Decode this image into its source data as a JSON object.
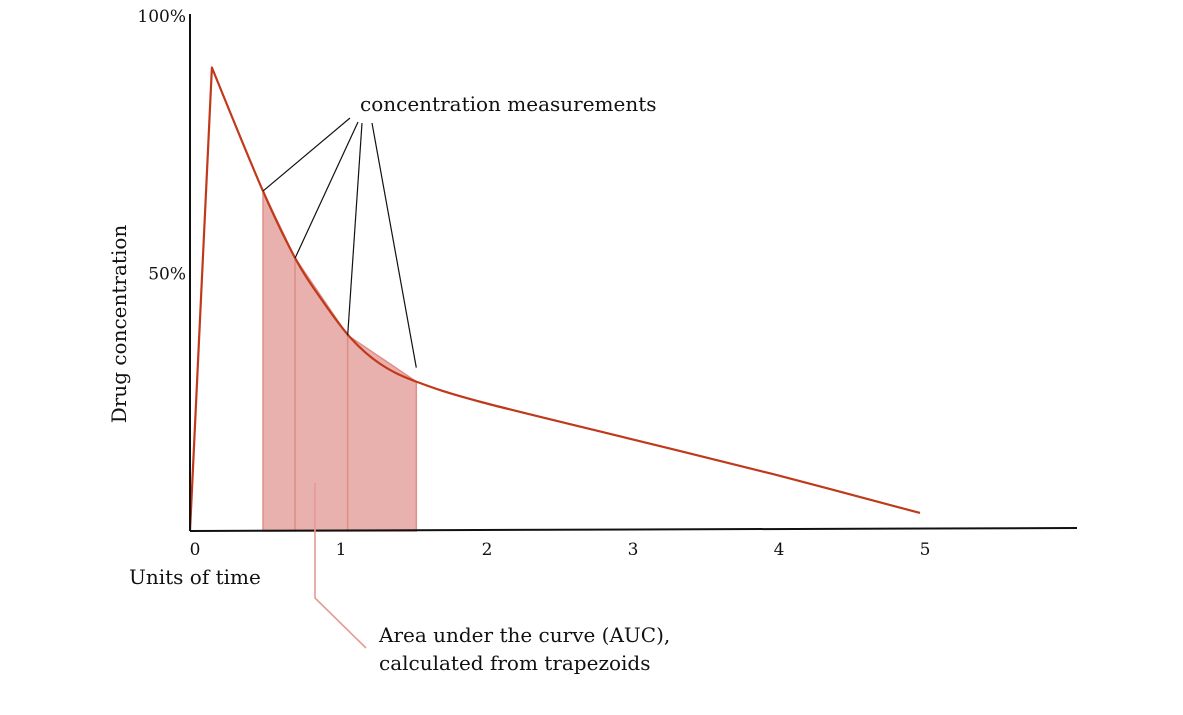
{
  "chart_data": {
    "type": "line",
    "title": "",
    "xlabel": "Units of time",
    "ylabel": "Drug concentration",
    "xlim": [
      0,
      6
    ],
    "ylim": [
      0,
      100
    ],
    "x_ticks": [
      {
        "value": 0,
        "label": "0"
      },
      {
        "value": 1,
        "label": "1"
      },
      {
        "value": 2,
        "label": "2"
      },
      {
        "value": 3,
        "label": "3"
      },
      {
        "value": 4,
        "label": "4"
      },
      {
        "value": 5,
        "label": "5"
      }
    ],
    "y_ticks": [
      {
        "value": 50,
        "label": "50%"
      },
      {
        "value": 100,
        "label": "100%"
      }
    ],
    "grid": false,
    "series": [
      {
        "x": [
          0,
          0.15,
          0.5,
          0.72,
          0.9,
          1.1,
          1.3,
          1.55,
          2,
          3,
          4,
          5
        ],
        "y": [
          0,
          90,
          66,
          53,
          45,
          37.5,
          32.5,
          29,
          25,
          18,
          11,
          3.5
        ],
        "color": "#c0391b"
      }
    ],
    "auc": {
      "color": "#e8b1ae",
      "measurement_times": [
        0.5,
        0.72,
        1.08,
        1.55
      ],
      "measurement_values": [
        66,
        53,
        38,
        29
      ]
    },
    "annotations": {
      "measurements": "concentration measurements",
      "auc_line1": "Area under the curve (AUC),",
      "auc_line2": "calculated from trapezoids"
    }
  }
}
